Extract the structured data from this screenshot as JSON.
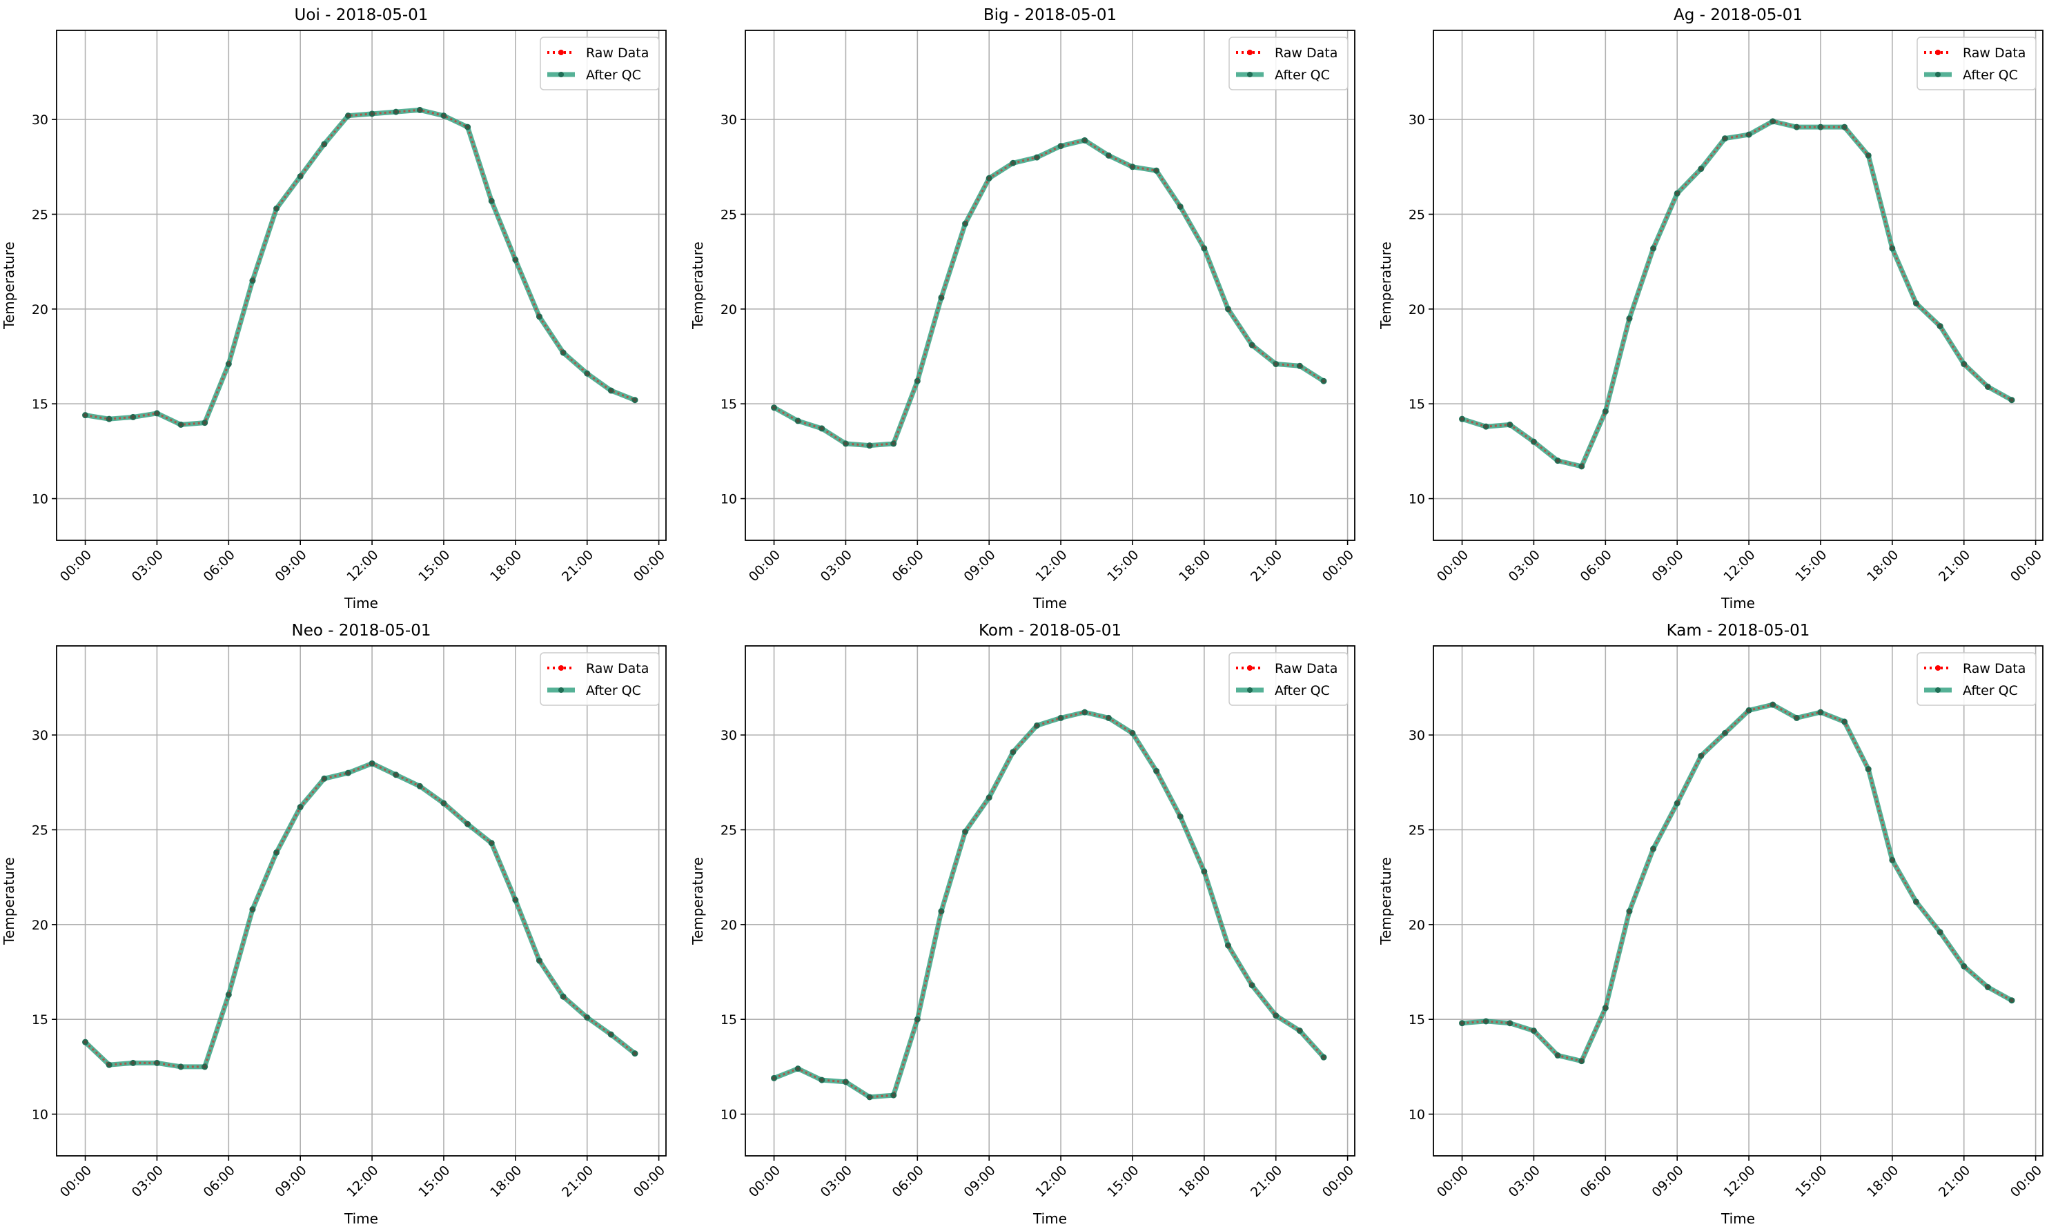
{
  "chart_data": [
    {
      "type": "line",
      "title": "Uoi - 2018-05-01",
      "xlabel": "Time",
      "ylabel": "Temperature",
      "series": [
        {
          "name": "Raw Data",
          "values": [
            14.4,
            14.2,
            14.3,
            14.5,
            13.9,
            14.0,
            17.1,
            21.5,
            25.3,
            27.0,
            28.7,
            30.2,
            30.3,
            30.4,
            30.5,
            30.2,
            29.6,
            25.7,
            22.6,
            19.6,
            17.7,
            16.6,
            15.7,
            15.2
          ]
        },
        {
          "name": "After QC",
          "values": [
            14.4,
            14.2,
            14.3,
            14.5,
            13.9,
            14.0,
            17.1,
            21.5,
            25.3,
            27.0,
            28.7,
            30.2,
            30.3,
            30.4,
            30.5,
            30.2,
            29.6,
            25.7,
            22.6,
            19.6,
            17.7,
            16.6,
            15.7,
            15.2
          ]
        }
      ]
    },
    {
      "type": "line",
      "title": "Big - 2018-05-01",
      "xlabel": "Time",
      "ylabel": "Temperature",
      "series": [
        {
          "name": "Raw Data",
          "values": [
            14.8,
            14.1,
            13.7,
            12.9,
            12.8,
            12.9,
            16.2,
            20.6,
            24.5,
            26.9,
            27.7,
            28.0,
            28.6,
            28.9,
            28.1,
            27.5,
            27.3,
            25.4,
            23.2,
            20.0,
            18.1,
            17.1,
            17.0,
            16.2
          ]
        },
        {
          "name": "After QC",
          "values": [
            14.8,
            14.1,
            13.7,
            12.9,
            12.8,
            12.9,
            16.2,
            20.6,
            24.5,
            26.9,
            27.7,
            28.0,
            28.6,
            28.9,
            28.1,
            27.5,
            27.3,
            25.4,
            23.2,
            20.0,
            18.1,
            17.1,
            17.0,
            16.2
          ]
        }
      ]
    },
    {
      "type": "line",
      "title": "Ag - 2018-05-01",
      "xlabel": "Time",
      "ylabel": "Temperature",
      "series": [
        {
          "name": "Raw Data",
          "values": [
            14.2,
            13.8,
            13.9,
            13.0,
            12.0,
            11.7,
            14.6,
            19.5,
            23.2,
            26.1,
            27.4,
            29.0,
            29.2,
            29.9,
            29.6,
            29.6,
            29.6,
            28.1,
            23.2,
            20.3,
            19.1,
            17.1,
            15.9,
            15.2
          ]
        },
        {
          "name": "After QC",
          "values": [
            14.2,
            13.8,
            13.9,
            13.0,
            12.0,
            11.7,
            14.6,
            19.5,
            23.2,
            26.1,
            27.4,
            29.0,
            29.2,
            29.9,
            29.6,
            29.6,
            29.6,
            28.1,
            23.2,
            20.3,
            19.1,
            17.1,
            15.9,
            15.2
          ]
        }
      ]
    },
    {
      "type": "line",
      "title": "Neo - 2018-05-01",
      "xlabel": "Time",
      "ylabel": "Temperature",
      "series": [
        {
          "name": "Raw Data",
          "values": [
            13.8,
            12.6,
            12.7,
            12.7,
            12.5,
            12.5,
            16.3,
            20.8,
            23.8,
            26.2,
            27.7,
            28.0,
            28.5,
            27.9,
            27.3,
            26.4,
            25.3,
            24.3,
            21.3,
            18.1,
            16.2,
            15.1,
            14.2,
            13.2
          ]
        },
        {
          "name": "After QC",
          "values": [
            13.8,
            12.6,
            12.7,
            12.7,
            12.5,
            12.5,
            16.3,
            20.8,
            23.8,
            26.2,
            27.7,
            28.0,
            28.5,
            27.9,
            27.3,
            26.4,
            25.3,
            24.3,
            21.3,
            18.1,
            16.2,
            15.1,
            14.2,
            13.2
          ]
        }
      ]
    },
    {
      "type": "line",
      "title": "Kom - 2018-05-01",
      "xlabel": "Time",
      "ylabel": "Temperature",
      "series": [
        {
          "name": "Raw Data",
          "values": [
            11.9,
            12.4,
            11.8,
            11.7,
            10.9,
            11.0,
            15.0,
            20.7,
            24.9,
            26.7,
            29.1,
            30.5,
            30.9,
            31.2,
            30.9,
            30.1,
            28.1,
            25.7,
            22.8,
            18.9,
            16.8,
            15.2,
            14.4,
            13.0
          ]
        },
        {
          "name": "After QC",
          "values": [
            11.9,
            12.4,
            11.8,
            11.7,
            10.9,
            11.0,
            15.0,
            20.7,
            24.9,
            26.7,
            29.1,
            30.5,
            30.9,
            31.2,
            30.9,
            30.1,
            28.1,
            25.7,
            22.8,
            18.9,
            16.8,
            15.2,
            14.4,
            13.0
          ]
        }
      ]
    },
    {
      "type": "line",
      "title": "Kam - 2018-05-01",
      "xlabel": "Time",
      "ylabel": "Temperature",
      "series": [
        {
          "name": "Raw Data",
          "values": [
            14.8,
            14.9,
            14.8,
            14.4,
            13.1,
            12.8,
            15.6,
            20.7,
            24.0,
            26.4,
            28.9,
            30.1,
            31.3,
            31.6,
            30.9,
            31.2,
            30.7,
            28.2,
            23.4,
            21.2,
            19.6,
            17.8,
            16.7,
            16.0
          ]
        },
        {
          "name": "After QC",
          "values": [
            14.8,
            14.9,
            14.8,
            14.4,
            13.1,
            12.8,
            15.6,
            20.7,
            24.0,
            26.4,
            28.9,
            30.1,
            31.3,
            31.6,
            30.9,
            31.2,
            30.7,
            28.2,
            23.4,
            21.2,
            19.6,
            17.8,
            16.7,
            16.0
          ]
        }
      ]
    }
  ],
  "shared": {
    "x_hours": [
      0,
      1,
      2,
      3,
      4,
      5,
      6,
      7,
      8,
      9,
      10,
      11,
      12,
      13,
      14,
      15,
      16,
      17,
      18,
      19,
      20,
      21,
      22,
      23
    ],
    "xlim_hours": [
      -1.2,
      24.3
    ],
    "ylim": [
      7.8,
      34.7
    ],
    "x_tick_hours": [
      0,
      3,
      6,
      9,
      12,
      15,
      18,
      21,
      24
    ],
    "x_tick_labels": [
      "00:00",
      "03:00",
      "06:00",
      "09:00",
      "12:00",
      "15:00",
      "18:00",
      "21:00",
      "00:00"
    ],
    "y_ticks": [
      10,
      15,
      20,
      25,
      30
    ],
    "y_tick_labels": [
      "10",
      "15",
      "20",
      "25",
      "30"
    ],
    "grid": true,
    "legend_placement": "top-right",
    "legend_labels": [
      "Raw Data",
      "After QC"
    ],
    "colors": {
      "raw": "#ff0000",
      "qc": "#2a9d7c",
      "qc_marker": "#1f6e55"
    }
  }
}
